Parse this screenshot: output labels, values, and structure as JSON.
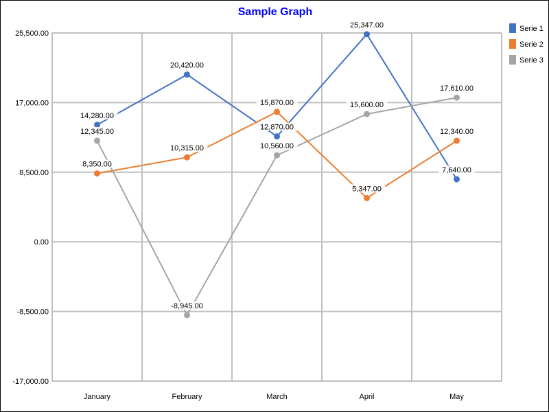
{
  "chart_data": {
    "type": "line",
    "title": "Sample Graph",
    "categories": [
      "January",
      "February",
      "March",
      "April",
      "May"
    ],
    "ylim": [
      -17000,
      25500
    ],
    "yticks": [
      -17000,
      -8500,
      0,
      8500,
      17000,
      25500
    ],
    "ytick_labels": [
      "-17,000.00",
      "-8,500.00",
      "0.00",
      "8,500.00",
      "17,000.00",
      "25,500.00"
    ],
    "grid": true,
    "legend_position": "top-right",
    "series": [
      {
        "name": "Serie 1",
        "color": "#4472c4",
        "values": [
          14280,
          20420,
          12870,
          25347,
          7640
        ],
        "labels": [
          "14,280.00",
          "20,420.00",
          "12,870.00",
          "25,347.00",
          "7,640.00"
        ]
      },
      {
        "name": "Serie 2",
        "color": "#ed7d31",
        "values": [
          8350,
          10315,
          15870,
          5347,
          12340
        ],
        "labels": [
          "8,350.00",
          "10,315.00",
          "15,870.00",
          "5,347.00",
          "12,340.00"
        ]
      },
      {
        "name": "Serie 3",
        "color": "#a5a5a5",
        "values": [
          12345,
          -8945,
          10560,
          15600,
          17610
        ],
        "labels": [
          "12,345.00",
          "-8,945.00",
          "10,560.00",
          "15,600.00",
          "17,610.00"
        ]
      }
    ]
  }
}
